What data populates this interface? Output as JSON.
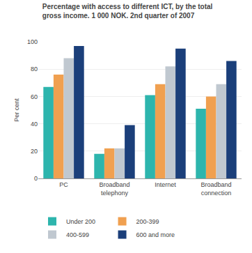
{
  "chart_data": {
    "type": "bar",
    "title": "Percentage with access to different ICT, by the total\ngross income. 1 000 NOK. 2nd quarter of 2007",
    "y_label": "Per cent",
    "categories": [
      "PC",
      "Broadband\ntelephony",
      "Internet",
      "Broadband\nconnection"
    ],
    "series": [
      {
        "name": "Under 200",
        "color": "#2db5ad",
        "values": [
          67,
          18,
          61,
          51
        ]
      },
      {
        "name": "200-399",
        "color": "#f0a050",
        "values": [
          76,
          22,
          69,
          60
        ]
      },
      {
        "name": "400-599",
        "color": "#c0c8d0",
        "values": [
          88,
          22,
          82,
          69
        ]
      },
      {
        "name": "600 and more",
        "color": "#1b3f7a",
        "values": [
          97,
          39,
          95,
          86
        ]
      }
    ],
    "ylim": [
      0,
      100
    ],
    "yticks": [
      0,
      20,
      40,
      60,
      80,
      100
    ],
    "grid": true,
    "legend": "lower left"
  }
}
